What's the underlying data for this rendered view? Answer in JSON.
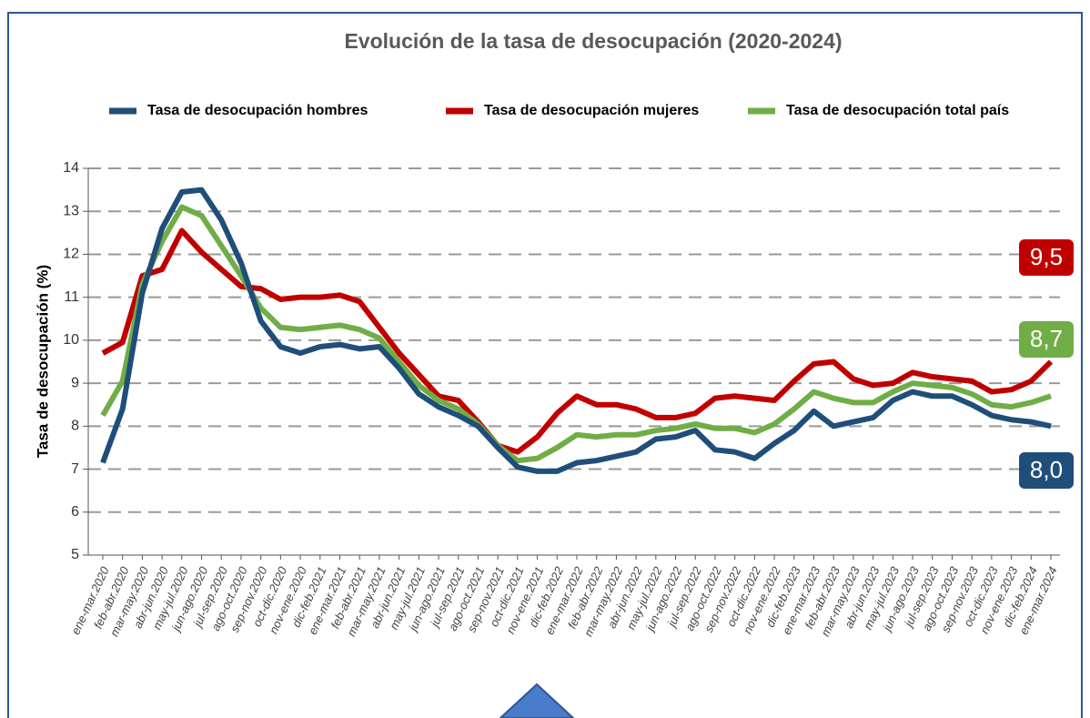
{
  "chart_data": {
    "type": "line",
    "title": "Evolución de la tasa de desocupación (2020-2024)",
    "y_label": "Tasa de desocupación (%)",
    "categories": [
      "ene-mar.2020",
      "feb-abr.2020",
      "mar-may.2020",
      "abr-jun.2020",
      "may-jul.2020",
      "jun-ago.2020",
      "jul-sep.2020",
      "ago-oct.2020",
      "sep-nov.2020",
      "oct-dic.2020",
      "nov-ene.2020",
      "dic-feb.2021",
      "ene-mar.2021",
      "feb-abr.2021",
      "mar-may.2021",
      "abr-jun.2021",
      "may-jul.2021",
      "jun-ago.2021",
      "jul-sep.2021",
      "ago-oct.2021",
      "sep-nov.2021",
      "oct-dic.2021",
      "nov-ene.2021",
      "dic-feb.2022",
      "ene-mar.2022",
      "feb-abr.2022",
      "mar-may.2022",
      "abr-jun.2022",
      "may-jul.2022",
      "jun-ago.2022",
      "jul-sep.2022",
      "ago-oct.2022",
      "sep-nov.2022",
      "oct-dic.2022",
      "nov-ene.2022",
      "dic-feb.2023",
      "ene-mar.2023",
      "feb-abr.2023",
      "mar-may.2023",
      "abr-jun.2023",
      "may-jul.2023",
      "jun-ago.2023",
      "jul-sep.2023",
      "ago-oct.2023",
      "sep-nov.2023",
      "oct-dic.2023",
      "nov-ene.2023",
      "dic-feb.2024",
      "ene-mar.2024"
    ],
    "series": [
      {
        "name": "Tasa de desocupación hombres",
        "color": "#1f4e79",
        "values": [
          7.15,
          8.4,
          11.1,
          12.6,
          13.45,
          13.5,
          12.8,
          11.8,
          10.45,
          9.85,
          9.7,
          9.85,
          9.9,
          9.8,
          9.85,
          9.35,
          8.75,
          8.45,
          8.25,
          8.0,
          7.5,
          7.05,
          6.95,
          6.95,
          7.15,
          7.2,
          7.3,
          7.4,
          7.7,
          7.75,
          7.9,
          7.45,
          7.4,
          7.25,
          7.6,
          7.9,
          8.35,
          8.0,
          8.1,
          8.2,
          8.6,
          8.8,
          8.7,
          8.7,
          8.5,
          8.25,
          8.15,
          8.1,
          8.0
        ],
        "value_labels": [
          null,
          null,
          null,
          null,
          null,
          null,
          null,
          null,
          null,
          null,
          null,
          null,
          null,
          null,
          null,
          null,
          null,
          null,
          null,
          null,
          null,
          null,
          null,
          null,
          null,
          null,
          null,
          null,
          null,
          null,
          null,
          null,
          null,
          null,
          null,
          null,
          null,
          null,
          null,
          null,
          null,
          null,
          null,
          null,
          null,
          null,
          null,
          null,
          "8,0"
        ]
      },
      {
        "name": "Tasa de desocupación mujeres",
        "color": "#c00000",
        "values": [
          9.7,
          9.95,
          11.5,
          11.65,
          12.55,
          12.05,
          11.65,
          11.25,
          11.2,
          10.95,
          11.0,
          11.0,
          11.05,
          10.9,
          10.3,
          9.7,
          9.2,
          8.7,
          8.6,
          8.1,
          7.55,
          7.4,
          7.75,
          8.3,
          8.7,
          8.5,
          8.5,
          8.4,
          8.2,
          8.2,
          8.3,
          8.65,
          8.7,
          8.65,
          8.6,
          9.05,
          9.45,
          9.5,
          9.1,
          8.95,
          9.0,
          9.25,
          9.15,
          9.1,
          9.05,
          8.8,
          8.85,
          9.05,
          9.5
        ],
        "value_labels": [
          null,
          null,
          null,
          null,
          null,
          null,
          null,
          null,
          null,
          null,
          null,
          null,
          null,
          null,
          null,
          null,
          null,
          null,
          null,
          null,
          null,
          null,
          null,
          null,
          null,
          null,
          null,
          null,
          null,
          null,
          null,
          null,
          null,
          null,
          null,
          null,
          null,
          null,
          null,
          null,
          null,
          null,
          null,
          null,
          null,
          null,
          null,
          null,
          "9,5"
        ]
      },
      {
        "name": "Tasa de desocupación total país",
        "color": "#70ad47",
        "values": [
          8.25,
          9.05,
          11.3,
          12.3,
          13.1,
          12.9,
          12.2,
          11.5,
          10.75,
          10.3,
          10.25,
          10.3,
          10.35,
          10.25,
          10.05,
          9.5,
          8.95,
          8.6,
          8.4,
          8.05,
          7.55,
          7.2,
          7.25,
          7.5,
          7.8,
          7.75,
          7.8,
          7.8,
          7.9,
          7.95,
          8.05,
          7.95,
          7.95,
          7.85,
          8.05,
          8.4,
          8.8,
          8.65,
          8.55,
          8.55,
          8.8,
          9.0,
          8.95,
          8.9,
          8.75,
          8.5,
          8.45,
          8.55,
          8.7
        ],
        "value_labels": [
          null,
          null,
          null,
          null,
          null,
          null,
          null,
          null,
          null,
          null,
          null,
          null,
          null,
          null,
          null,
          null,
          null,
          null,
          null,
          null,
          null,
          null,
          null,
          null,
          null,
          null,
          null,
          null,
          null,
          null,
          null,
          null,
          null,
          null,
          null,
          null,
          null,
          null,
          null,
          null,
          null,
          null,
          null,
          null,
          null,
          null,
          null,
          null,
          "8,7"
        ]
      }
    ],
    "ylim": [
      5,
      14
    ],
    "yticks": [
      5,
      6,
      7,
      8,
      9,
      10,
      11,
      12,
      13,
      14
    ],
    "grid": true,
    "legend": "top"
  }
}
